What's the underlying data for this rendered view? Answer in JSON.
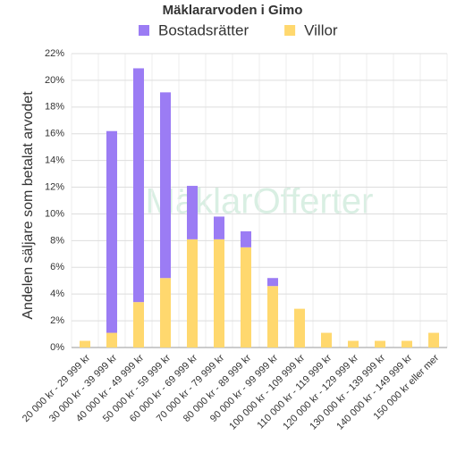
{
  "chart_data": {
    "type": "stacked_bar",
    "title": "Mäklararvoden i Gimo",
    "watermark": "MäklarOfferter",
    "y_label": "Andelen säljare som betalat arvodet",
    "categories": [
      "20 000 kr - 29 999 kr",
      "30 000 kr - 39 999 kr",
      "40 000 kr - 49 999 kr",
      "50 000 kr - 59 999 kr",
      "60 000 kr - 69 999 kr",
      "70 000 kr - 79 999 kr",
      "80 000 kr - 89 999 kr",
      "90 000 kr - 99 999 kr",
      "100 000 kr - 109 999 kr",
      "110 000 kr - 119 999 kr",
      "120 000 kr - 129 999 kr",
      "130 000 kr - 139 999 kr",
      "140 000 kr - 149 999 kr",
      "150 000 kr eller mer"
    ],
    "series": [
      {
        "name": "Bostadsrätter",
        "color": "#9b7cf4",
        "values": [
          0,
          15.1,
          17.5,
          13.9,
          4.0,
          1.7,
          1.2,
          0.6,
          0,
          0,
          0,
          0,
          0,
          0
        ]
      },
      {
        "name": "Villor",
        "color": "#ffd86e",
        "values": [
          0.5,
          1.1,
          3.4,
          5.2,
          8.1,
          8.1,
          7.5,
          4.6,
          2.9,
          1.1,
          0.5,
          0.5,
          0.5,
          1.1
        ]
      }
    ],
    "ylim": [
      0,
      22
    ],
    "yticks": [
      {
        "value": 0,
        "label": "0%"
      },
      {
        "value": 2,
        "label": "2%"
      },
      {
        "value": 4,
        "label": "4%"
      },
      {
        "value": 6,
        "label": "6%"
      },
      {
        "value": 8,
        "label": "8%"
      },
      {
        "value": 10,
        "label": "10%"
      },
      {
        "value": 12,
        "label": "12%"
      },
      {
        "value": 14,
        "label": "14%"
      },
      {
        "value": 16,
        "label": "16%"
      },
      {
        "value": 18,
        "label": "18%"
      },
      {
        "value": 20,
        "label": "20%"
      },
      {
        "value": 22,
        "label": "22%"
      }
    ],
    "grid": true,
    "legend": "top"
  }
}
